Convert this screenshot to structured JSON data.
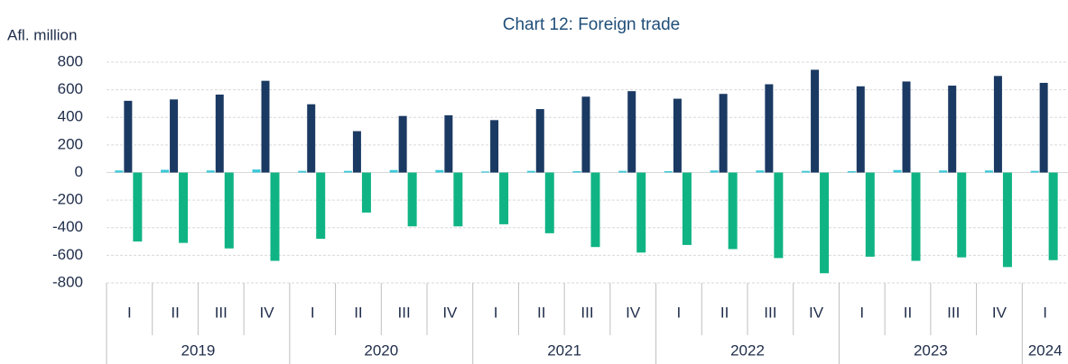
{
  "chart_data": {
    "type": "bar",
    "title": "Chart 12: Foreign trade",
    "y_label": "Afl. million",
    "categories": [
      "I",
      "II",
      "III",
      "IV",
      "I",
      "II",
      "III",
      "IV",
      "I",
      "II",
      "III",
      "IV",
      "I",
      "II",
      "III",
      "IV",
      "I",
      "II",
      "III",
      "IV",
      "I"
    ],
    "years": [
      "2019",
      "2020",
      "2021",
      "2022",
      "2023",
      "2024"
    ],
    "series": [
      {
        "color": "#3cc8d8",
        "values": [
          15,
          20,
          15,
          22,
          12,
          12,
          18,
          18,
          8,
          12,
          10,
          12,
          10,
          15,
          15,
          12,
          10,
          18,
          15,
          15,
          12
        ]
      },
      {
        "color": "#1b3a63",
        "values": [
          520,
          530,
          565,
          665,
          495,
          300,
          410,
          415,
          380,
          460,
          550,
          590,
          535,
          570,
          640,
          745,
          625,
          660,
          630,
          700,
          650
        ]
      },
      {
        "color": "#10b484",
        "values": [
          -500,
          -510,
          -550,
          -640,
          -480,
          -290,
          -390,
          -390,
          -375,
          -440,
          -540,
          -580,
          -525,
          -555,
          -620,
          -730,
          -610,
          -640,
          -615,
          -685,
          -635
        ]
      }
    ],
    "ylim": [
      -800,
      800
    ],
    "yticks": [
      -800,
      -600,
      -400,
      -200,
      0,
      200,
      400,
      600,
      800
    ],
    "grid": true
  }
}
